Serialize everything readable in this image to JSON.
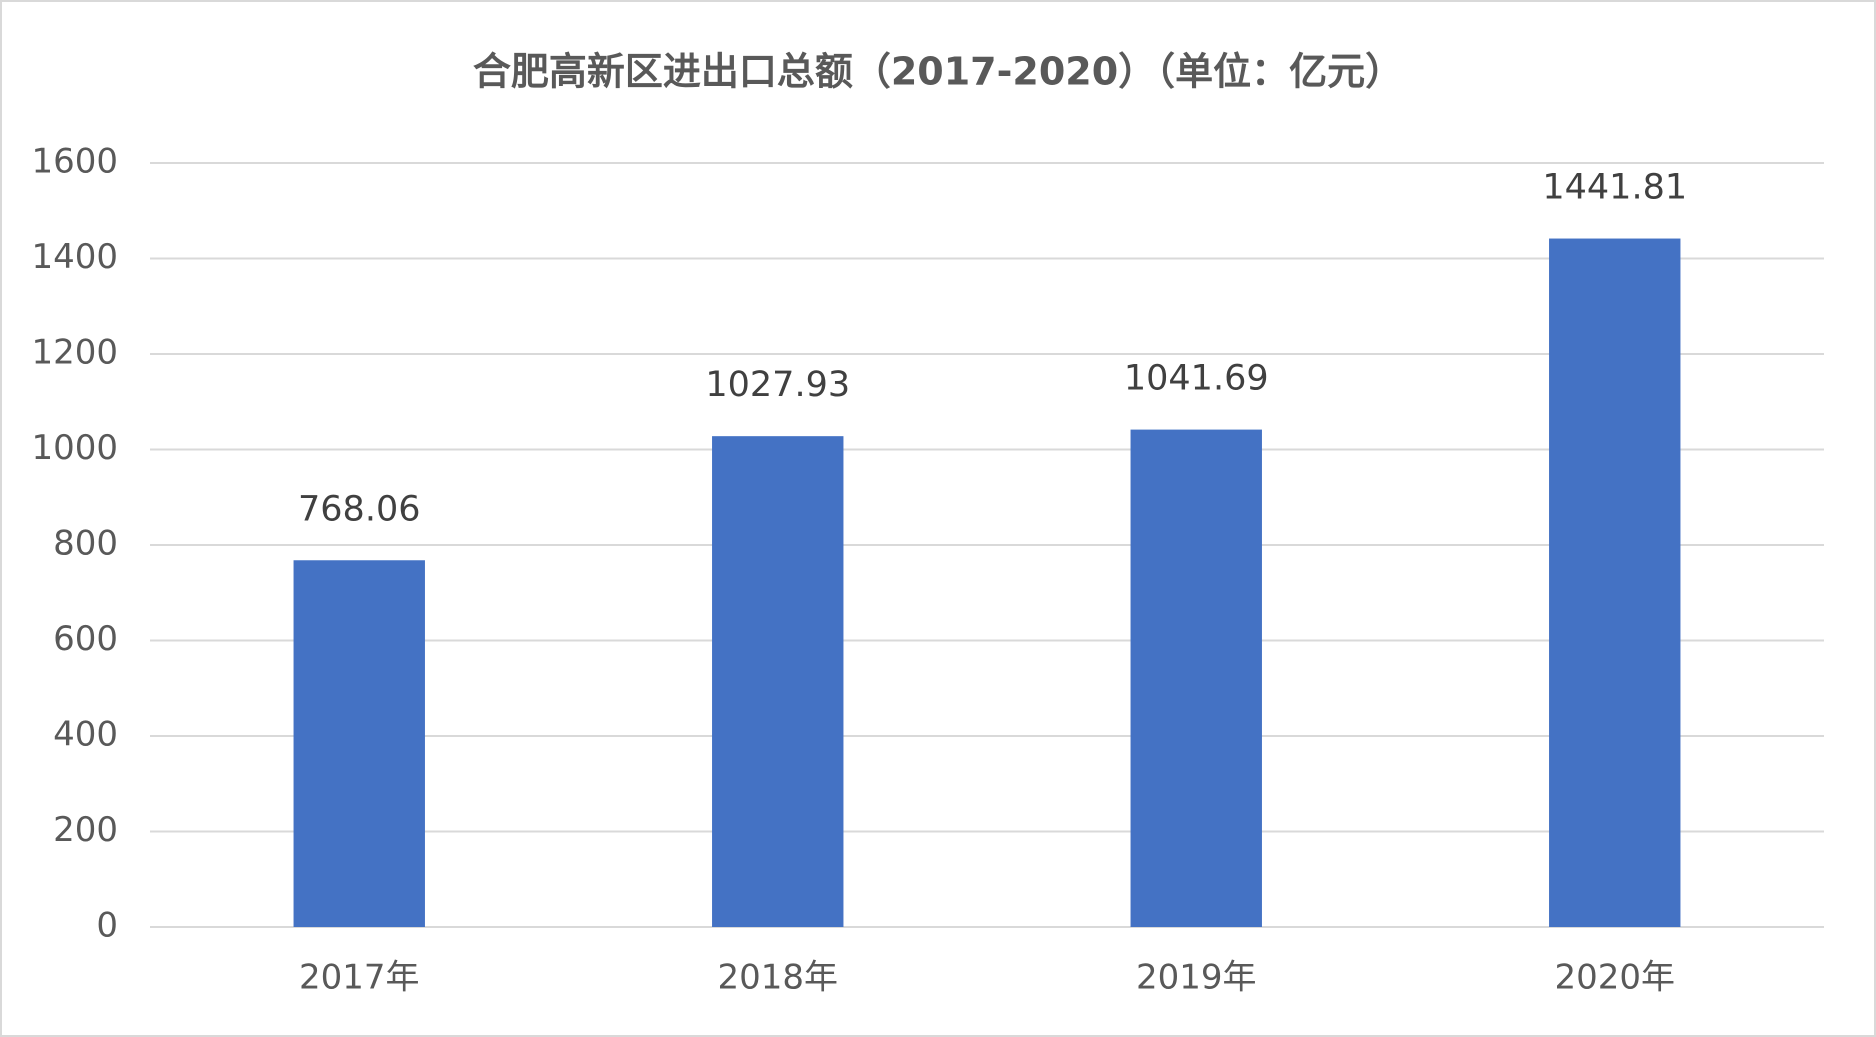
{
  "chart_data": {
    "type": "bar",
    "title": "合肥高新区进出口总额（2017-2020）（单位：亿元）",
    "categories": [
      "2017年",
      "2018年",
      "2019年",
      "2020年"
    ],
    "values": [
      768.06,
      1027.93,
      1041.69,
      1441.81
    ],
    "color": "#4472c4",
    "ylim": [
      0,
      1600
    ],
    "yticks": [
      0,
      200,
      400,
      600,
      800,
      1000,
      1200,
      1400,
      1600
    ],
    "grid": true
  }
}
